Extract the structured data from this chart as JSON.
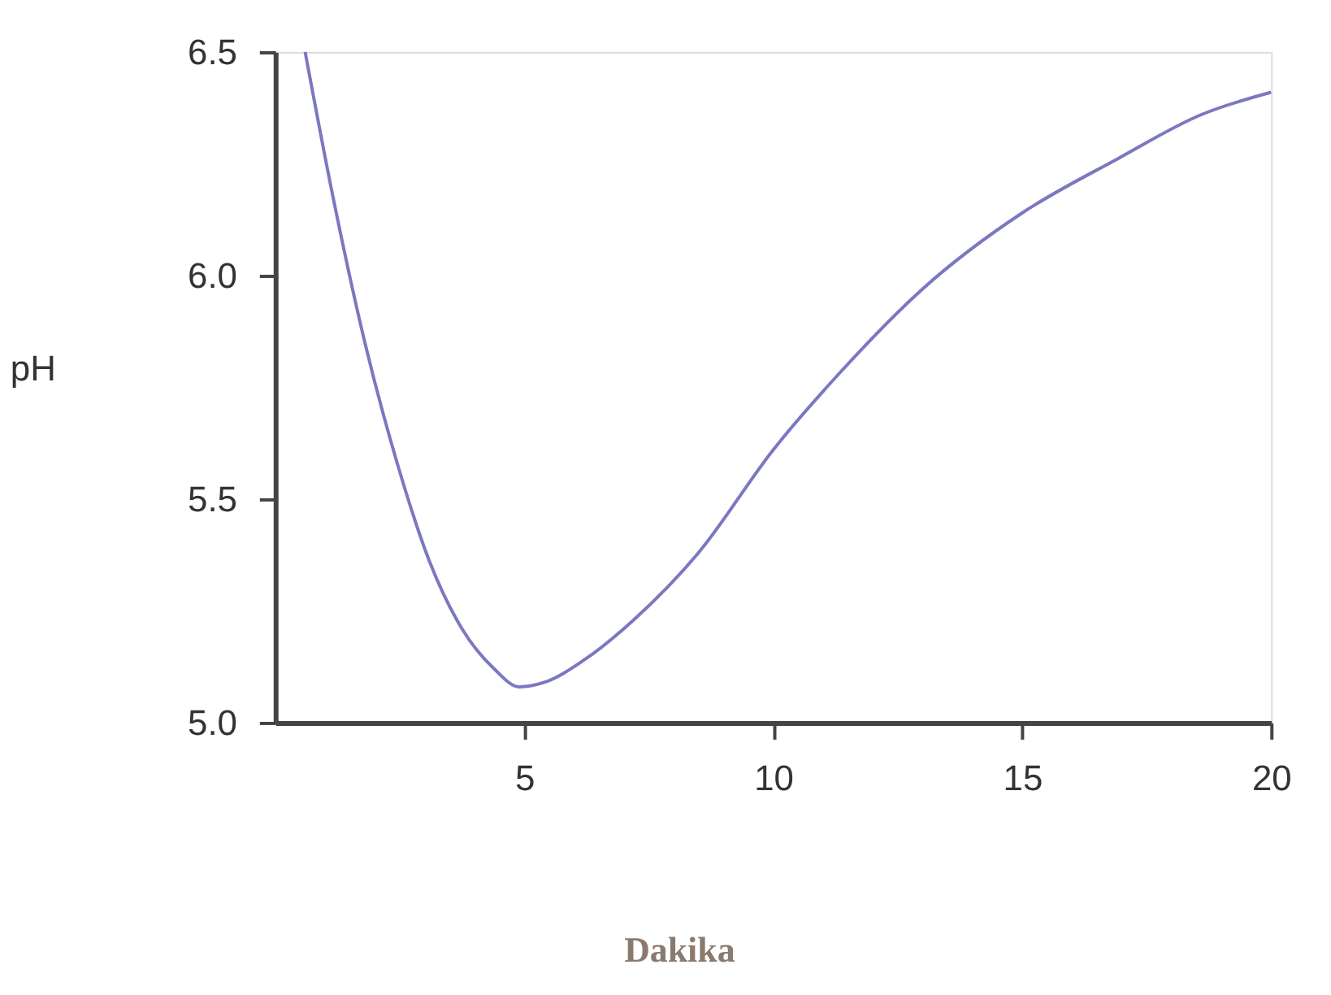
{
  "chart_data": {
    "type": "line",
    "xlabel": "Dakika",
    "ylabel": "pH",
    "x": [
      0.6,
      1.17,
      1.8,
      2.45,
      3.1,
      3.75,
      4.4,
      4.9,
      5.4,
      6.2,
      7.2,
      8.5,
      10,
      11.4,
      13,
      15,
      16.9,
      18.6,
      20
    ],
    "series": [
      {
        "color": "#7b78c0",
        "values": [
          6.5,
          6.17,
          5.85,
          5.58,
          5.36,
          5.21,
          5.12,
          5.08,
          5.09,
          5.14,
          5.23,
          5.38,
          5.61,
          5.79,
          5.97,
          6.14,
          6.26,
          6.36,
          6.41
        ]
      }
    ],
    "xlim": [
      0,
      20
    ],
    "xticks": [
      5,
      10,
      15,
      20
    ],
    "ylim": [
      5.0,
      6.5
    ],
    "yticks": [
      {
        "value": 5,
        "label": "5.0"
      },
      {
        "value": 5.5,
        "label": "5.5"
      },
      {
        "value": 6,
        "label": "6.0"
      },
      {
        "value": 6.5,
        "label": "6.5"
      }
    ],
    "grid": false,
    "marker": "none",
    "line_style": "solid"
  }
}
